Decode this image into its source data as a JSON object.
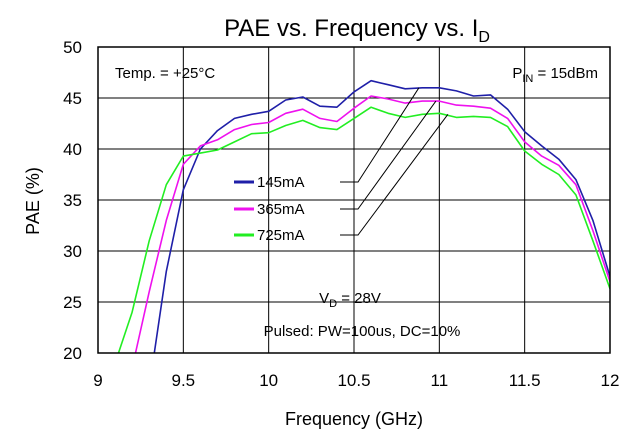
{
  "chart_data": {
    "type": "line",
    "title": {
      "main": "PAE vs. Frequency vs. I",
      "sub": "D"
    },
    "xlabel": "Frequency (GHz)",
    "ylabel": "PAE (%)",
    "xlim": [
      9,
      12
    ],
    "ylim": [
      20,
      50
    ],
    "xticks": [
      "9",
      "9.5",
      "10",
      "10.5",
      "11",
      "11.5",
      "12"
    ],
    "yticks": [
      "20",
      "25",
      "30",
      "35",
      "40",
      "45",
      "50"
    ],
    "grid": true,
    "annotations": {
      "temp": "Temp. = +25°C",
      "pin_main": "P",
      "pin_sub": "IN",
      "pin_rest": " = 15dBm",
      "vd_main": "V",
      "vd_sub": "D",
      "vd_rest": " = 28V",
      "pulsed": "Pulsed: PW=100us, DC=10%"
    },
    "series": [
      {
        "name": "145mA",
        "color": "#1f1fa8",
        "points": [
          [
            9.33,
            20
          ],
          [
            9.4,
            28
          ],
          [
            9.5,
            36
          ],
          [
            9.6,
            40
          ],
          [
            9.7,
            41.8
          ],
          [
            9.8,
            43
          ],
          [
            9.9,
            43.4
          ],
          [
            10.0,
            43.7
          ],
          [
            10.1,
            44.8
          ],
          [
            10.2,
            45.1
          ],
          [
            10.3,
            44.2
          ],
          [
            10.4,
            44.1
          ],
          [
            10.5,
            45.6
          ],
          [
            10.6,
            46.7
          ],
          [
            10.7,
            46.3
          ],
          [
            10.8,
            45.9
          ],
          [
            10.9,
            46.0
          ],
          [
            11.0,
            46.0
          ],
          [
            11.1,
            45.7
          ],
          [
            11.2,
            45.2
          ],
          [
            11.3,
            45.3
          ],
          [
            11.4,
            43.9
          ],
          [
            11.5,
            41.7
          ],
          [
            11.6,
            40.3
          ],
          [
            11.7,
            39.0
          ],
          [
            11.8,
            37.0
          ],
          [
            11.9,
            33.0
          ],
          [
            12.0,
            27.5
          ]
        ]
      },
      {
        "name": "365mA",
        "color": "#ee11ee",
        "points": [
          [
            9.22,
            20
          ],
          [
            9.3,
            26
          ],
          [
            9.4,
            33
          ],
          [
            9.5,
            38.5
          ],
          [
            9.6,
            40.3
          ],
          [
            9.7,
            40.9
          ],
          [
            9.8,
            41.9
          ],
          [
            9.9,
            42.4
          ],
          [
            10.0,
            42.6
          ],
          [
            10.1,
            43.5
          ],
          [
            10.2,
            43.9
          ],
          [
            10.3,
            43.0
          ],
          [
            10.4,
            42.7
          ],
          [
            10.5,
            44.0
          ],
          [
            10.6,
            45.2
          ],
          [
            10.7,
            44.9
          ],
          [
            10.8,
            44.5
          ],
          [
            10.9,
            44.7
          ],
          [
            11.0,
            44.7
          ],
          [
            11.1,
            44.3
          ],
          [
            11.2,
            44.2
          ],
          [
            11.3,
            44.0
          ],
          [
            11.4,
            43.0
          ],
          [
            11.5,
            40.7
          ],
          [
            11.6,
            39.3
          ],
          [
            11.7,
            38.4
          ],
          [
            11.8,
            36.5
          ],
          [
            11.9,
            32.0
          ],
          [
            12.0,
            27.0
          ]
        ]
      },
      {
        "name": "725mA",
        "color": "#22ee22",
        "points": [
          [
            9.12,
            20
          ],
          [
            9.2,
            24
          ],
          [
            9.3,
            31
          ],
          [
            9.4,
            36.5
          ],
          [
            9.5,
            39.3
          ],
          [
            9.6,
            39.6
          ],
          [
            9.7,
            39.9
          ],
          [
            9.8,
            40.7
          ],
          [
            9.9,
            41.5
          ],
          [
            10.0,
            41.6
          ],
          [
            10.1,
            42.3
          ],
          [
            10.2,
            42.8
          ],
          [
            10.3,
            42.1
          ],
          [
            10.4,
            41.9
          ],
          [
            10.5,
            43.0
          ],
          [
            10.6,
            44.1
          ],
          [
            10.7,
            43.5
          ],
          [
            10.8,
            43.1
          ],
          [
            10.9,
            43.4
          ],
          [
            11.0,
            43.5
          ],
          [
            11.1,
            43.1
          ],
          [
            11.2,
            43.2
          ],
          [
            11.3,
            43.1
          ],
          [
            11.4,
            42.2
          ],
          [
            11.5,
            39.8
          ],
          [
            11.6,
            38.5
          ],
          [
            11.7,
            37.5
          ],
          [
            11.8,
            35.5
          ],
          [
            11.9,
            31.0
          ],
          [
            12.0,
            26.3
          ]
        ]
      }
    ]
  }
}
